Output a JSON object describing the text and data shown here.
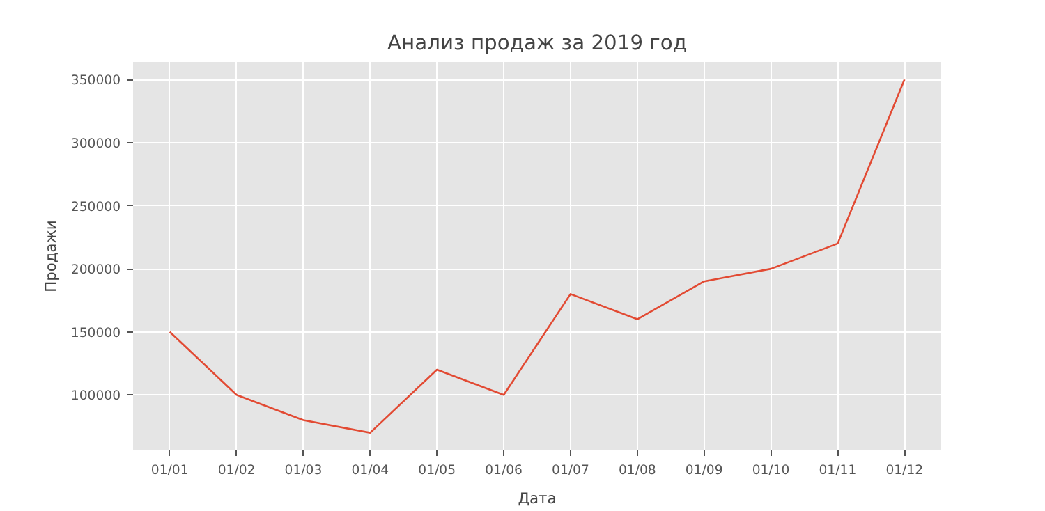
{
  "chart_data": {
    "type": "line",
    "title": "Анализ продаж за 2019 год",
    "xlabel": "Дата",
    "ylabel": "Продажи",
    "categories": [
      "01/01",
      "01/02",
      "01/03",
      "01/04",
      "01/05",
      "01/06",
      "01/07",
      "01/08",
      "01/09",
      "01/10",
      "01/11",
      "01/12"
    ],
    "series": [
      {
        "color": "#e24a33",
        "values": [
          150000,
          100000,
          80000,
          70000,
          120000,
          100000,
          180000,
          160000,
          190000,
          200000,
          220000,
          350000
        ]
      }
    ],
    "ylim": [
      56000,
      364000
    ],
    "yticks": [
      100000,
      150000,
      200000,
      250000,
      300000,
      350000
    ],
    "grid": true
  }
}
